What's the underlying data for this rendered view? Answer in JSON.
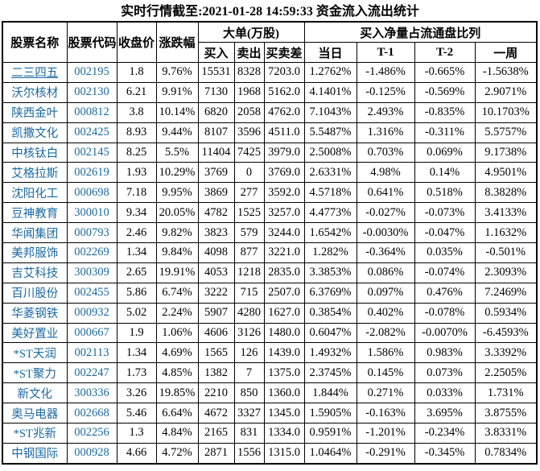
{
  "title": "实时行情截至:2021-01-28 14:59:33 资金流入流出统计",
  "colors": {
    "link_blue": "#1b69a3",
    "border_black": "#000000",
    "text_black": "#000000",
    "background": "#ffffff"
  },
  "table": {
    "headers": {
      "stock_name": "股票名称",
      "stock_code": "股票代码",
      "close_price": "收盘价",
      "change_pct": "涨跌幅",
      "large_orders_group": "大单(万股)",
      "buy": "买入",
      "sell": "卖出",
      "buy_sell_diff": "买卖差",
      "net_buy_ratio_group": "买入净量占流通盘比列",
      "today": "当日",
      "t_minus_1": "T-1",
      "t_minus_2": "T-2",
      "one_week": "一周"
    },
    "rows": [
      {
        "name": "二三四五",
        "code": "002195",
        "close": "1.8",
        "change": "9.76%",
        "buy": "15531",
        "sell": "8328",
        "diff": "7203.0",
        "today": "1.2762%",
        "t1": "-1.486%",
        "t2": "-0.665%",
        "week": "-1.5638%",
        "name_underlined": true
      },
      {
        "name": "沃尔核材",
        "code": "002130",
        "close": "6.21",
        "change": "9.91%",
        "buy": "7130",
        "sell": "1968",
        "diff": "5162.0",
        "today": "4.1401%",
        "t1": "-0.125%",
        "t2": "-0.569%",
        "week": "2.9071%"
      },
      {
        "name": "陕西金叶",
        "code": "000812",
        "close": "3.8",
        "change": "10.14%",
        "buy": "6820",
        "sell": "2058",
        "diff": "4762.0",
        "today": "7.1043%",
        "t1": "2.493%",
        "t2": "-0.835%",
        "week": "10.1703%"
      },
      {
        "name": "凯撒文化",
        "code": "002425",
        "close": "8.93",
        "change": "9.44%",
        "buy": "8107",
        "sell": "3596",
        "diff": "4511.0",
        "today": "5.5487%",
        "t1": "1.316%",
        "t2": "-0.311%",
        "week": "5.5757%"
      },
      {
        "name": "中核钛白",
        "code": "002145",
        "close": "8.25",
        "change": "5.5%",
        "buy": "11404",
        "sell": "7425",
        "diff": "3979.0",
        "today": "2.5008%",
        "t1": "0.703%",
        "t2": "0.069%",
        "week": "9.1738%"
      },
      {
        "name": "艾格拉斯",
        "code": "002619",
        "close": "1.93",
        "change": "10.29%",
        "buy": "3769",
        "sell": "0",
        "diff": "3769.0",
        "today": "2.6331%",
        "t1": "4.98%",
        "t2": "0.14%",
        "week": "4.9501%"
      },
      {
        "name": "沈阳化工",
        "code": "000698",
        "close": "7.18",
        "change": "9.95%",
        "buy": "3869",
        "sell": "277",
        "diff": "3592.0",
        "today": "4.5718%",
        "t1": "0.641%",
        "t2": "0.518%",
        "week": "8.3828%"
      },
      {
        "name": "豆神教育",
        "code": "300010",
        "close": "9.34",
        "change": "20.05%",
        "buy": "4782",
        "sell": "1525",
        "diff": "3257.0",
        "today": "4.4773%",
        "t1": "-0.027%",
        "t2": "-0.073%",
        "week": "3.4133%"
      },
      {
        "name": "华闻集团",
        "code": "000793",
        "close": "2.46",
        "change": "9.82%",
        "buy": "3823",
        "sell": "579",
        "diff": "3244.0",
        "today": "1.6542%",
        "t1": "-0.0030%",
        "t2": "-0.047%",
        "week": "1.1632%"
      },
      {
        "name": "美邦服饰",
        "code": "002269",
        "close": "1.34",
        "change": "9.84%",
        "buy": "4098",
        "sell": "877",
        "diff": "3221.0",
        "today": "1.282%",
        "t1": "-0.364%",
        "t2": "0.035%",
        "week": "-0.501%"
      },
      {
        "name": "吉艾科技",
        "code": "300309",
        "close": "2.65",
        "change": "19.91%",
        "buy": "4053",
        "sell": "1218",
        "diff": "2835.0",
        "today": "3.3853%",
        "t1": "0.086%",
        "t2": "-0.074%",
        "week": "2.3093%"
      },
      {
        "name": "百川股份",
        "code": "002455",
        "close": "5.86",
        "change": "6.74%",
        "buy": "3222",
        "sell": "715",
        "diff": "2507.0",
        "today": "6.3769%",
        "t1": "0.097%",
        "t2": "0.476%",
        "week": "7.2469%"
      },
      {
        "name": "华菱钢铁",
        "code": "000932",
        "close": "5.02",
        "change": "2.24%",
        "buy": "5907",
        "sell": "4280",
        "diff": "1627.0",
        "today": "0.3854%",
        "t1": "0.402%",
        "t2": "-0.078%",
        "week": "0.5934%"
      },
      {
        "name": "美好置业",
        "code": "000667",
        "close": "1.9",
        "change": "1.06%",
        "buy": "4606",
        "sell": "3126",
        "diff": "1480.0",
        "today": "0.6047%",
        "t1": "-2.082%",
        "t2": "-0.0070%",
        "week": "-6.4593%"
      },
      {
        "name": "*ST天润",
        "code": "002113",
        "close": "1.34",
        "change": "4.69%",
        "buy": "1565",
        "sell": "126",
        "diff": "1439.0",
        "today": "1.4932%",
        "t1": "1.586%",
        "t2": "0.983%",
        "week": "3.3392%"
      },
      {
        "name": "*ST聚力",
        "code": "002247",
        "close": "1.73",
        "change": "4.85%",
        "buy": "1382",
        "sell": "7",
        "diff": "1375.0",
        "today": "2.3745%",
        "t1": "0.145%",
        "t2": "0.073%",
        "week": "2.2505%"
      },
      {
        "name": "新文化",
        "code": "300336",
        "close": "3.26",
        "change": "19.85%",
        "buy": "2210",
        "sell": "850",
        "diff": "1360.0",
        "today": "1.844%",
        "t1": "0.271%",
        "t2": "0.033%",
        "week": "1.731%"
      },
      {
        "name": "奥马电器",
        "code": "002668",
        "close": "5.46",
        "change": "6.64%",
        "buy": "4672",
        "sell": "3327",
        "diff": "1345.0",
        "today": "1.5905%",
        "t1": "-0.163%",
        "t2": "3.695%",
        "week": "3.8755%"
      },
      {
        "name": "*ST兆新",
        "code": "002256",
        "close": "1.3",
        "change": "4.84%",
        "buy": "2165",
        "sell": "831",
        "diff": "1334.0",
        "today": "0.9591%",
        "t1": "-1.201%",
        "t2": "-0.234%",
        "week": "3.8331%"
      },
      {
        "name": "中钢国际",
        "code": "000928",
        "close": "4.66",
        "change": "4.72%",
        "buy": "2871",
        "sell": "1556",
        "diff": "1315.0",
        "today": "1.0464%",
        "t1": "-0.291%",
        "t2": "-0.345%",
        "week": "0.7834%"
      }
    ]
  }
}
